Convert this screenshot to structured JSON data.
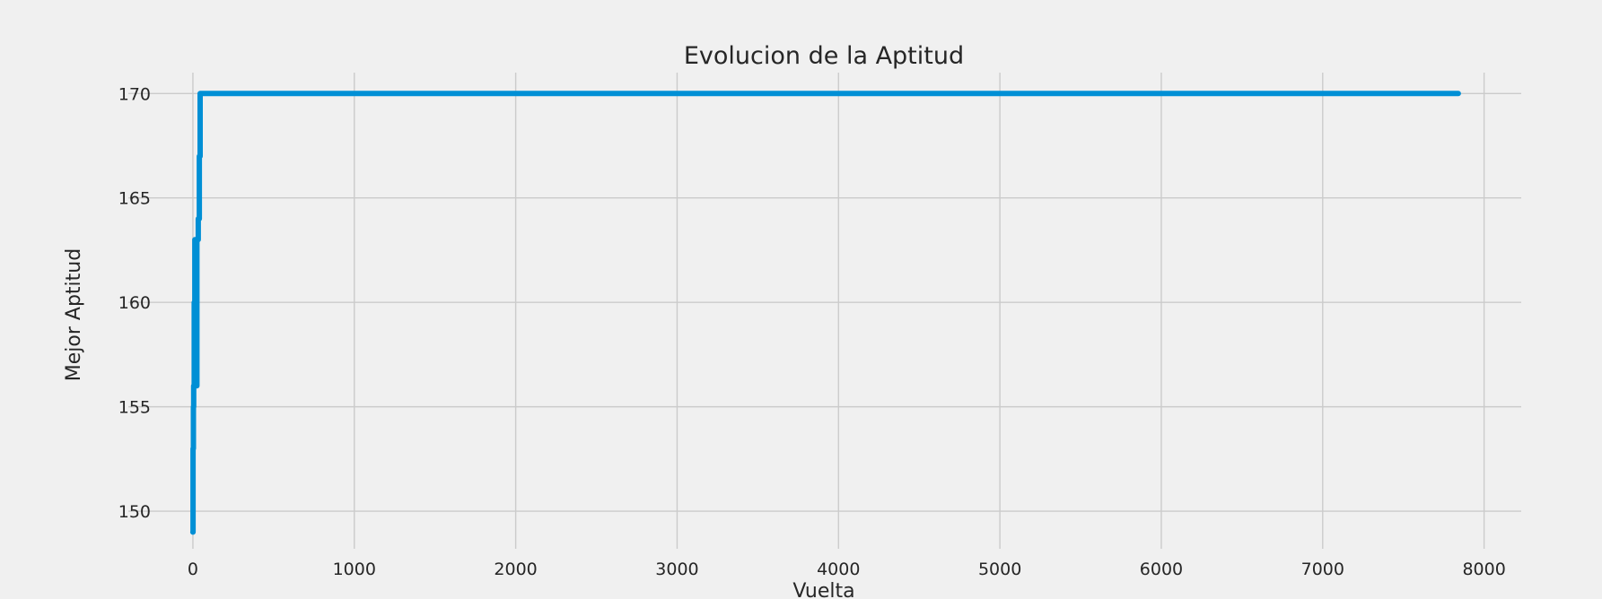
{
  "chart_data": {
    "type": "line",
    "title": "Evolucion de la Aptitud",
    "xlabel": "Vuelta",
    "ylabel": "Mejor Aptitud",
    "xlim": [
      -400,
      8230
    ],
    "ylim": [
      148.2,
      171
    ],
    "xticks": [
      0,
      1000,
      2000,
      3000,
      4000,
      5000,
      6000,
      7000,
      8000
    ],
    "yticks": [
      150,
      155,
      160,
      165,
      170
    ],
    "grid": true,
    "colors": {
      "line": "#008fd5",
      "background": "#f0f0f0",
      "grid": "#cbcbcb"
    },
    "series": [
      {
        "x": [
          0,
          1,
          1,
          3,
          3,
          5,
          5,
          8,
          8,
          12,
          12,
          18,
          18,
          25,
          25,
          33,
          33,
          40,
          40,
          45,
          45,
          7840
        ],
        "y": [
          149,
          149,
          153,
          153,
          155,
          155,
          156,
          156,
          160,
          160,
          163,
          163,
          156,
          156,
          163,
          163,
          164,
          164,
          167,
          167,
          170,
          170
        ]
      }
    ]
  }
}
